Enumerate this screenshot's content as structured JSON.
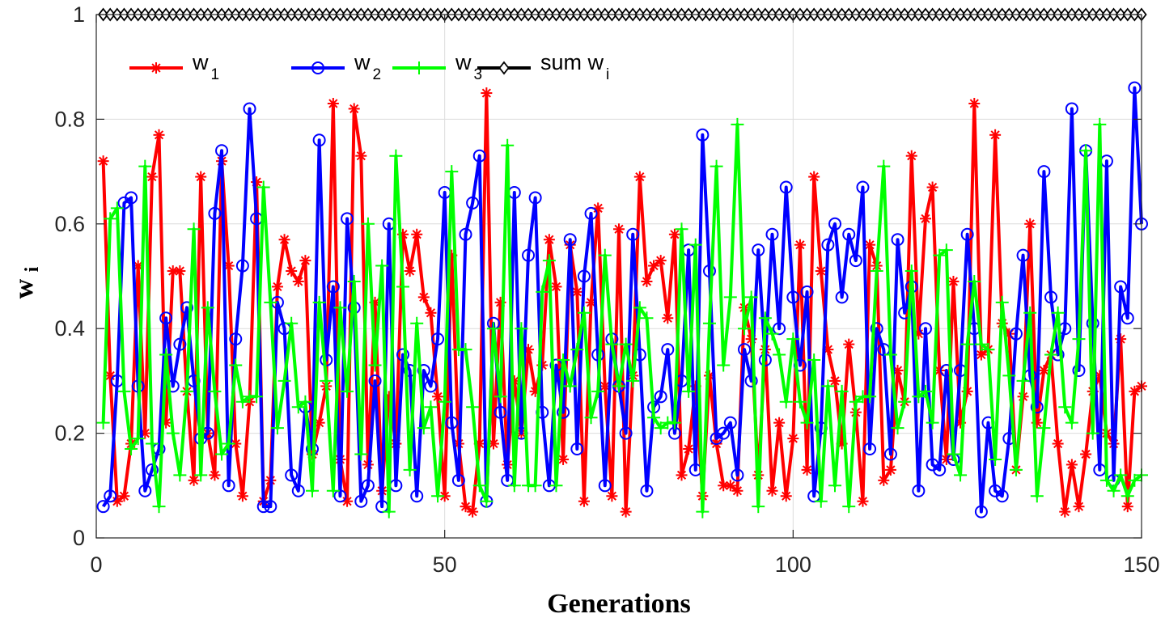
{
  "chart_data": {
    "type": "line",
    "xlabel": "Generations",
    "ylabel": {
      "main": "w",
      "sub": "i"
    },
    "xlim": [
      0,
      150
    ],
    "ylim": [
      0,
      1
    ],
    "xticks": [
      "0",
      "50",
      "100",
      "150"
    ],
    "yticks": [
      "0",
      "0.2",
      "0.4",
      "0.6",
      "0.8",
      "1"
    ],
    "grid": true,
    "legend_position": "top-left",
    "x": [
      1,
      2,
      3,
      4,
      5,
      6,
      7,
      8,
      9,
      10,
      11,
      12,
      13,
      14,
      15,
      16,
      17,
      18,
      19,
      20,
      21,
      22,
      23,
      24,
      25,
      26,
      27,
      28,
      29,
      30,
      31,
      32,
      33,
      34,
      35,
      36,
      37,
      38,
      39,
      40,
      41,
      42,
      43,
      44,
      45,
      46,
      47,
      48,
      49,
      50,
      51,
      52,
      53,
      54,
      55,
      56,
      57,
      58,
      59,
      60,
      61,
      62,
      63,
      64,
      65,
      66,
      67,
      68,
      69,
      70,
      71,
      72,
      73,
      74,
      75,
      76,
      77,
      78,
      79,
      80,
      81,
      82,
      83,
      84,
      85,
      86,
      87,
      88,
      89,
      90,
      91,
      92,
      93,
      94,
      95,
      96,
      97,
      98,
      99,
      100,
      101,
      102,
      103,
      104,
      105,
      106,
      107,
      108,
      109,
      110,
      111,
      112,
      113,
      114,
      115,
      116,
      117,
      118,
      119,
      120,
      121,
      122,
      123,
      124,
      125,
      126,
      127,
      128,
      129,
      130,
      131,
      132,
      133,
      134,
      135,
      136,
      137,
      138,
      139,
      140,
      141,
      142,
      143,
      144,
      145,
      146,
      147,
      148,
      149,
      150
    ],
    "series": [
      {
        "name": "w",
        "sub": "1",
        "color": "#ff0000",
        "marker": "asterisk",
        "values": [
          0.72,
          0.31,
          0.07,
          0.08,
          0.18,
          0.52,
          0.2,
          0.69,
          0.77,
          0.22,
          0.51,
          0.51,
          0.28,
          0.11,
          0.69,
          0.2,
          0.12,
          0.72,
          0.52,
          0.18,
          0.08,
          0.26,
          0.68,
          0.07,
          0.11,
          0.48,
          0.57,
          0.51,
          0.49,
          0.53,
          0.16,
          0.22,
          0.29,
          0.83,
          0.15,
          0.07,
          0.82,
          0.73,
          0.14,
          0.45,
          0.09,
          0.27,
          0.18,
          0.58,
          0.51,
          0.58,
          0.46,
          0.43,
          0.27,
          0.08,
          0.54,
          0.18,
          0.06,
          0.05,
          0.18,
          0.85,
          0.18,
          0.45,
          0.14,
          0.3,
          0.2,
          0.36,
          0.28,
          0.33,
          0.57,
          0.48,
          0.15,
          0.56,
          0.47,
          0.07,
          0.45,
          0.63,
          0.29,
          0.08,
          0.59,
          0.05,
          0.31,
          0.69,
          0.49,
          0.52,
          0.53,
          0.42,
          0.58,
          0.12,
          0.17,
          0.29,
          0.08,
          0.31,
          0.18,
          0.1,
          0.1,
          0.09,
          0.44,
          0.38,
          0.12,
          0.36,
          0.09,
          0.22,
          0.08,
          0.19,
          0.56,
          0.13,
          0.69,
          0.51,
          0.36,
          0.3,
          0.18,
          0.37,
          0.24,
          0.07,
          0.56,
          0.52,
          0.11,
          0.13,
          0.32,
          0.26,
          0.73,
          0.39,
          0.61,
          0.67,
          0.32,
          0.15,
          0.49,
          0.22,
          0.28,
          0.83,
          0.35,
          0.36,
          0.77,
          0.41,
          0.39,
          0.13,
          0.27,
          0.6,
          0.22,
          0.32,
          0.35,
          0.18,
          0.05,
          0.14,
          0.06,
          0.16,
          0.28,
          0.31,
          0.2,
          0.18,
          0.38,
          0.06,
          0.28,
          0.29
        ]
      },
      {
        "name": "w",
        "sub": "2",
        "color": "#0000ff",
        "marker": "circle",
        "values": [
          0.06,
          0.08,
          0.3,
          0.64,
          0.65,
          0.29,
          0.09,
          0.13,
          0.17,
          0.42,
          0.29,
          0.37,
          0.44,
          0.3,
          0.19,
          0.2,
          0.62,
          0.74,
          0.1,
          0.38,
          0.52,
          0.82,
          0.61,
          0.06,
          0.06,
          0.45,
          0.4,
          0.12,
          0.09,
          0.25,
          0.17,
          0.76,
          0.34,
          0.48,
          0.08,
          0.61,
          0.44,
          0.07,
          0.1,
          0.3,
          0.06,
          0.6,
          0.1,
          0.35,
          0.32,
          0.08,
          0.32,
          0.29,
          0.38,
          0.66,
          0.22,
          0.11,
          0.58,
          0.64,
          0.73,
          0.07,
          0.41,
          0.24,
          0.11,
          0.66,
          0.2,
          0.54,
          0.65,
          0.24,
          0.1,
          0.33,
          0.24,
          0.57,
          0.17,
          0.5,
          0.62,
          0.35,
          0.1,
          0.38,
          0.29,
          0.2,
          0.58,
          0.35,
          0.09,
          0.25,
          0.27,
          0.36,
          0.2,
          0.3,
          0.55,
          0.13,
          0.77,
          0.51,
          0.19,
          0.2,
          0.22,
          0.12,
          0.36,
          0.3,
          0.55,
          0.34,
          0.58,
          0.4,
          0.67,
          0.46,
          0.33,
          0.47,
          0.08,
          0.21,
          0.56,
          0.6,
          0.46,
          0.58,
          0.53,
          0.67,
          0.17,
          0.4,
          0.36,
          0.16,
          0.57,
          0.43,
          0.48,
          0.09,
          0.4,
          0.14,
          0.13,
          0.32,
          0.15,
          0.32,
          0.58,
          0.4,
          0.05,
          0.22,
          0.09,
          0.08,
          0.19,
          0.39,
          0.54,
          0.31,
          0.25,
          0.7,
          0.46,
          0.35,
          0.4,
          0.82,
          0.32,
          0.74,
          0.41,
          0.13,
          0.72,
          0.11,
          0.48,
          0.42,
          0.86,
          0.6
        ]
      },
      {
        "name": "w",
        "sub": "3",
        "color": "#00ff00",
        "marker": "plus",
        "values": [
          0.22,
          0.61,
          0.63,
          0.28,
          0.17,
          0.19,
          0.71,
          0.18,
          0.06,
          0.35,
          0.2,
          0.12,
          0.28,
          0.59,
          0.12,
          0.44,
          0.28,
          0.16,
          0.18,
          0.33,
          0.26,
          0.27,
          0.27,
          0.67,
          0.45,
          0.21,
          0.3,
          0.41,
          0.25,
          0.26,
          0.09,
          0.45,
          0.3,
          0.09,
          0.44,
          0.28,
          0.49,
          0.16,
          0.6,
          0.33,
          0.52,
          0.05,
          0.73,
          0.48,
          0.13,
          0.41,
          0.21,
          0.25,
          0.08,
          0.26,
          0.7,
          0.36,
          0.36,
          0.25,
          0.1,
          0.07,
          0.4,
          0.27,
          0.75,
          0.1,
          0.4,
          0.1,
          0.1,
          0.47,
          0.53,
          0.1,
          0.34,
          0.29,
          0.36,
          0.43,
          0.23,
          0.28,
          0.54,
          0.37,
          0.29,
          0.37,
          0.3,
          0.44,
          0.42,
          0.23,
          0.21,
          0.22,
          0.22,
          0.59,
          0.28,
          0.56,
          0.05,
          0.41,
          0.71,
          0.33,
          0.46,
          0.79,
          0.4,
          0.46,
          0.06,
          0.42,
          0.39,
          0.35,
          0.26,
          0.38,
          0.26,
          0.22,
          0.34,
          0.07,
          0.29,
          0.1,
          0.28,
          0.06,
          0.26,
          0.27,
          0.27,
          0.51,
          0.71,
          0.35,
          0.21,
          0.26,
          0.51,
          0.27,
          0.28,
          0.22,
          0.54,
          0.55,
          0.16,
          0.12,
          0.37,
          0.49,
          0.37,
          0.36,
          0.15,
          0.45,
          0.31,
          0.13,
          0.3,
          0.43,
          0.08,
          0.21,
          0.35,
          0.43,
          0.25,
          0.22,
          0.38,
          0.74,
          0.2,
          0.79,
          0.11,
          0.09,
          0.12,
          0.08,
          0.11,
          0.12
        ]
      },
      {
        "name": "sum w",
        "sub": "i",
        "color": "#000000",
        "marker": "diamond",
        "values": [
          1,
          1,
          1,
          1,
          1,
          1,
          1,
          1,
          1,
          1,
          1,
          1,
          1,
          1,
          1,
          1,
          1,
          1,
          1,
          1,
          1,
          1,
          1,
          1,
          1,
          1,
          1,
          1,
          1,
          1,
          1,
          1,
          1,
          1,
          1,
          1,
          1,
          1,
          1,
          1,
          1,
          1,
          1,
          1,
          1,
          1,
          1,
          1,
          1,
          1,
          1,
          1,
          1,
          1,
          1,
          1,
          1,
          1,
          1,
          1,
          1,
          1,
          1,
          1,
          1,
          1,
          1,
          1,
          1,
          1,
          1,
          1,
          1,
          1,
          1,
          1,
          1,
          1,
          1,
          1,
          1,
          1,
          1,
          1,
          1,
          1,
          1,
          1,
          1,
          1,
          1,
          1,
          1,
          1,
          1,
          1,
          1,
          1,
          1,
          1,
          1,
          1,
          1,
          1,
          1,
          1,
          1,
          1,
          1,
          1,
          1,
          1,
          1,
          1,
          1,
          1,
          1,
          1,
          1,
          1,
          1,
          1,
          1,
          1,
          1,
          1,
          1,
          1,
          1,
          1,
          1,
          1,
          1,
          1,
          1,
          1,
          1,
          1,
          1,
          1,
          1,
          1,
          1,
          1,
          1,
          1,
          1,
          1,
          1,
          1
        ]
      }
    ]
  }
}
